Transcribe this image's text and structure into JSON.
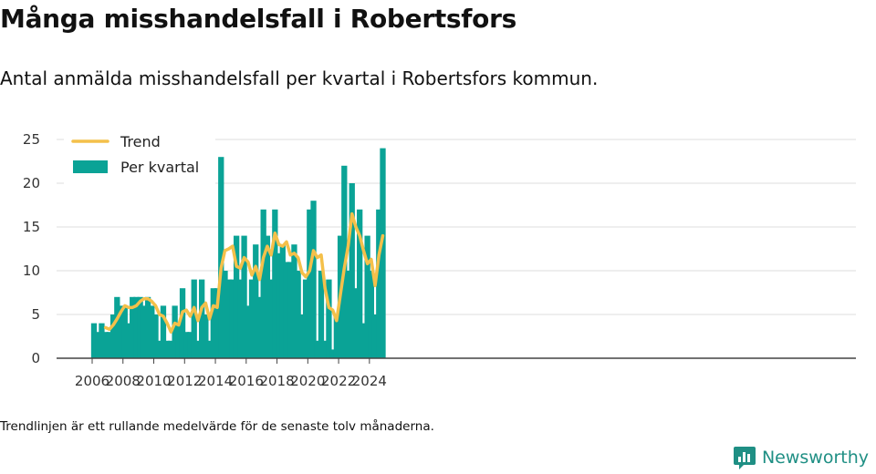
{
  "title": "Många misshandelsfall i Robertsfors",
  "subtitle": "Antal anmälda misshandelsfall per kvartal i Robertsfors kommun.",
  "note": "Trendlinjen är ett rullande medelvärde för de senaste tolv månaderna.",
  "brand": "Newsworthy",
  "colors": {
    "bar": "#0aa396",
    "trend": "#f4c04a",
    "grid": "#dddddd",
    "axis": "#444444",
    "brand": "#1f8f84"
  },
  "chart_data": {
    "type": "bar",
    "x_unit": "quarter",
    "x_start": "2006 Q1",
    "x_ticks": [
      "2006",
      "2008",
      "2010",
      "2012",
      "2014",
      "2016",
      "2018",
      "2020",
      "2022",
      "2024"
    ],
    "y_ticks": [
      "0",
      "5",
      "10",
      "15",
      "20",
      "25"
    ],
    "ylim": [
      0,
      25
    ],
    "grid": true,
    "legend_position": "top-left",
    "series": [
      {
        "name": "Per kvartal",
        "type": "bar",
        "values": [
          4,
          3,
          4,
          3,
          3,
          5,
          7,
          6,
          6,
          4,
          7,
          7,
          7,
          6,
          7,
          6,
          5,
          2,
          6,
          2,
          2,
          6,
          4,
          8,
          3,
          3,
          9,
          2,
          9,
          5,
          2,
          8,
          8,
          23,
          10,
          9,
          9,
          14,
          9,
          14,
          6,
          9,
          13,
          7,
          17,
          14,
          9,
          17,
          12,
          13,
          11,
          11,
          13,
          10,
          5,
          9,
          17,
          18,
          2,
          10,
          2,
          9,
          1,
          5,
          14,
          22,
          10,
          20,
          8,
          17,
          4,
          14,
          10,
          5,
          17,
          24
        ]
      },
      {
        "name": "Trend",
        "type": "line",
        "values": [
          null,
          null,
          null,
          3.5,
          3.3,
          3.8,
          4.5,
          5.3,
          6.0,
          5.8,
          5.8,
          6.0,
          6.5,
          6.8,
          6.8,
          6.5,
          6.0,
          5.0,
          4.8,
          4.0,
          3.0,
          4.0,
          3.8,
          5.3,
          5.5,
          4.8,
          5.8,
          4.3,
          5.8,
          6.3,
          4.5,
          6.0,
          5.8,
          10.3,
          12.3,
          12.5,
          12.8,
          10.5,
          10.3,
          11.5,
          11.0,
          9.5,
          10.5,
          9.0,
          11.5,
          12.8,
          11.8,
          14.3,
          13.0,
          12.8,
          13.3,
          11.8,
          12.0,
          11.5,
          9.8,
          9.3,
          10.0,
          12.3,
          11.5,
          11.8,
          8.0,
          5.8,
          5.5,
          4.3,
          7.3,
          10.3,
          12.8,
          16.5,
          15.0,
          14.0,
          12.3,
          10.8,
          11.3,
          8.3,
          11.8,
          14.0
        ]
      }
    ]
  }
}
